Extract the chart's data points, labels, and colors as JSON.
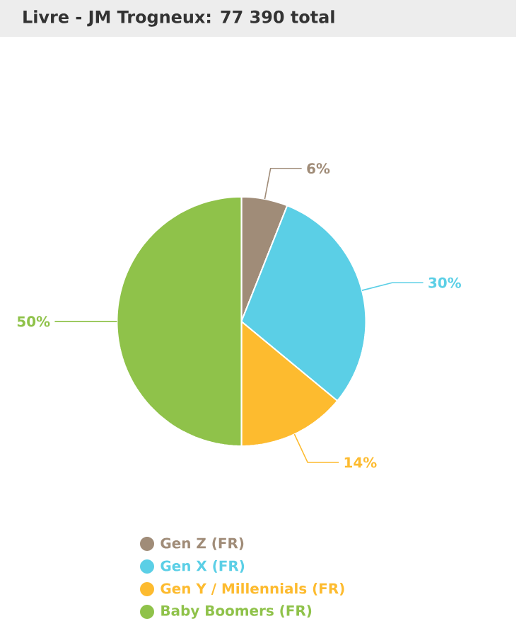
{
  "chart_data": {
    "type": "pie",
    "title": "Livre - JM Trogneux: 77 390 total",
    "categories": [
      "Gen Z (FR)",
      "Gen X (FR)",
      "Gen Y / Millennials (FR)",
      "Baby Boomers (FR)"
    ],
    "values": [
      6,
      30,
      14,
      50
    ],
    "colors": [
      "#a08c78",
      "#5bcfe6",
      "#fdbb2f",
      "#8fc24a"
    ],
    "value_labels": [
      "6%",
      "30%",
      "14%",
      "50%"
    ],
    "legend": "bottom"
  }
}
